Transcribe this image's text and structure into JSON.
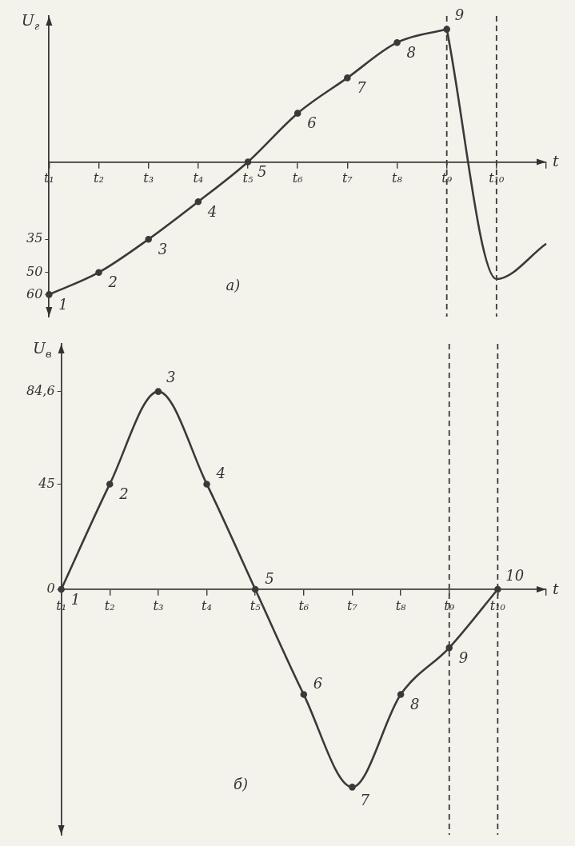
{
  "chart_data": [
    {
      "type": "line",
      "xlabel": "t",
      "ylabel": "U$_{г}$",
      "categories": [
        "t₁",
        "t₂",
        "t₃",
        "t₄",
        "t₅",
        "t₆",
        "t₇",
        "t₈",
        "t₉",
        "t₁₀",
        null
      ],
      "series": [
        {
          "color": "#3a3a3a",
          "values": [
            -60,
            -50,
            -35,
            -18,
            0,
            22,
            38,
            54,
            60,
            null,
            null
          ],
          "marker": "circle"
        },
        {
          "color": "#3a3a3a",
          "values": [
            null,
            null,
            null,
            null,
            null,
            null,
            null,
            null,
            60,
            -53,
            -37
          ],
          "marker": "none"
        }
      ],
      "ylim": [
        -70,
        66
      ],
      "yticks": [
        {
          "value": -35,
          "label": "35"
        },
        {
          "value": -50,
          "label": "50"
        },
        {
          "value": -60,
          "label": "60"
        }
      ],
      "grid": false,
      "legend": false,
      "line_style": "solid",
      "ref_lines": [
        {
          "axis": "x",
          "value": "t₉",
          "line_style": "dashed"
        },
        {
          "axis": "x",
          "value": "t₁₀",
          "line_style": "dashed"
        }
      ],
      "annotations": [
        {
          "text": "1",
          "x": "t₁",
          "y": -60
        },
        {
          "text": "2",
          "x": "t₂",
          "y": -50
        },
        {
          "text": "3",
          "x": "t₃",
          "y": -35
        },
        {
          "text": "4",
          "x": "t₄",
          "y": -18
        },
        {
          "text": "5",
          "x": "t₅",
          "y": 0
        },
        {
          "text": "6",
          "x": "t₆",
          "y": 22
        },
        {
          "text": "7",
          "x": "t₇",
          "y": 38
        },
        {
          "text": "8",
          "x": "t₈",
          "y": 54
        },
        {
          "text": "9",
          "x": "t₉",
          "y": 60
        },
        "а)"
      ]
    },
    {
      "type": "line",
      "xlabel": "t",
      "ylabel": "U$_{в}$",
      "categories": [
        "t₁",
        "t₂",
        "t₃",
        "t₄",
        "t₅",
        "t₆",
        "t₇",
        "t₈",
        "t₉",
        "t₁₀",
        null
      ],
      "series": [
        {
          "color": "#3a3a3a",
          "values": [
            0,
            45,
            84.6,
            45,
            0,
            -45,
            -84.6,
            -45,
            -25,
            0,
            null
          ],
          "marker": "circle"
        }
      ],
      "ylim": [
        -105,
        105
      ],
      "yticks": [
        0,
        45,
        {
          "value": 84.6,
          "label": "84,6"
        }
      ],
      "grid": false,
      "legend": false,
      "line_style": "solid",
      "ref_lines": [
        {
          "axis": "x",
          "value": "t₉",
          "line_style": "dashed"
        },
        {
          "axis": "x",
          "value": "t₁₀",
          "line_style": "dashed"
        }
      ],
      "annotations": [
        {
          "text": "1",
          "x": "t₁",
          "y": 0
        },
        {
          "text": "2",
          "x": "t₂",
          "y": 45
        },
        {
          "text": "3",
          "x": "t₃",
          "y": 84.6
        },
        {
          "text": "4",
          "x": "t₄",
          "y": 45
        },
        {
          "text": "5",
          "x": "t₅",
          "y": 0
        },
        {
          "text": "6",
          "x": "t₆",
          "y": -45
        },
        {
          "text": "7",
          "x": "t₇",
          "y": -84.6
        },
        {
          "text": "8",
          "x": "t₈",
          "y": -45
        },
        {
          "text": "9",
          "x": "t₉",
          "y": -25
        },
        {
          "text": "10",
          "x": "t₁₀",
          "y": 0
        },
        "б)"
      ]
    }
  ]
}
